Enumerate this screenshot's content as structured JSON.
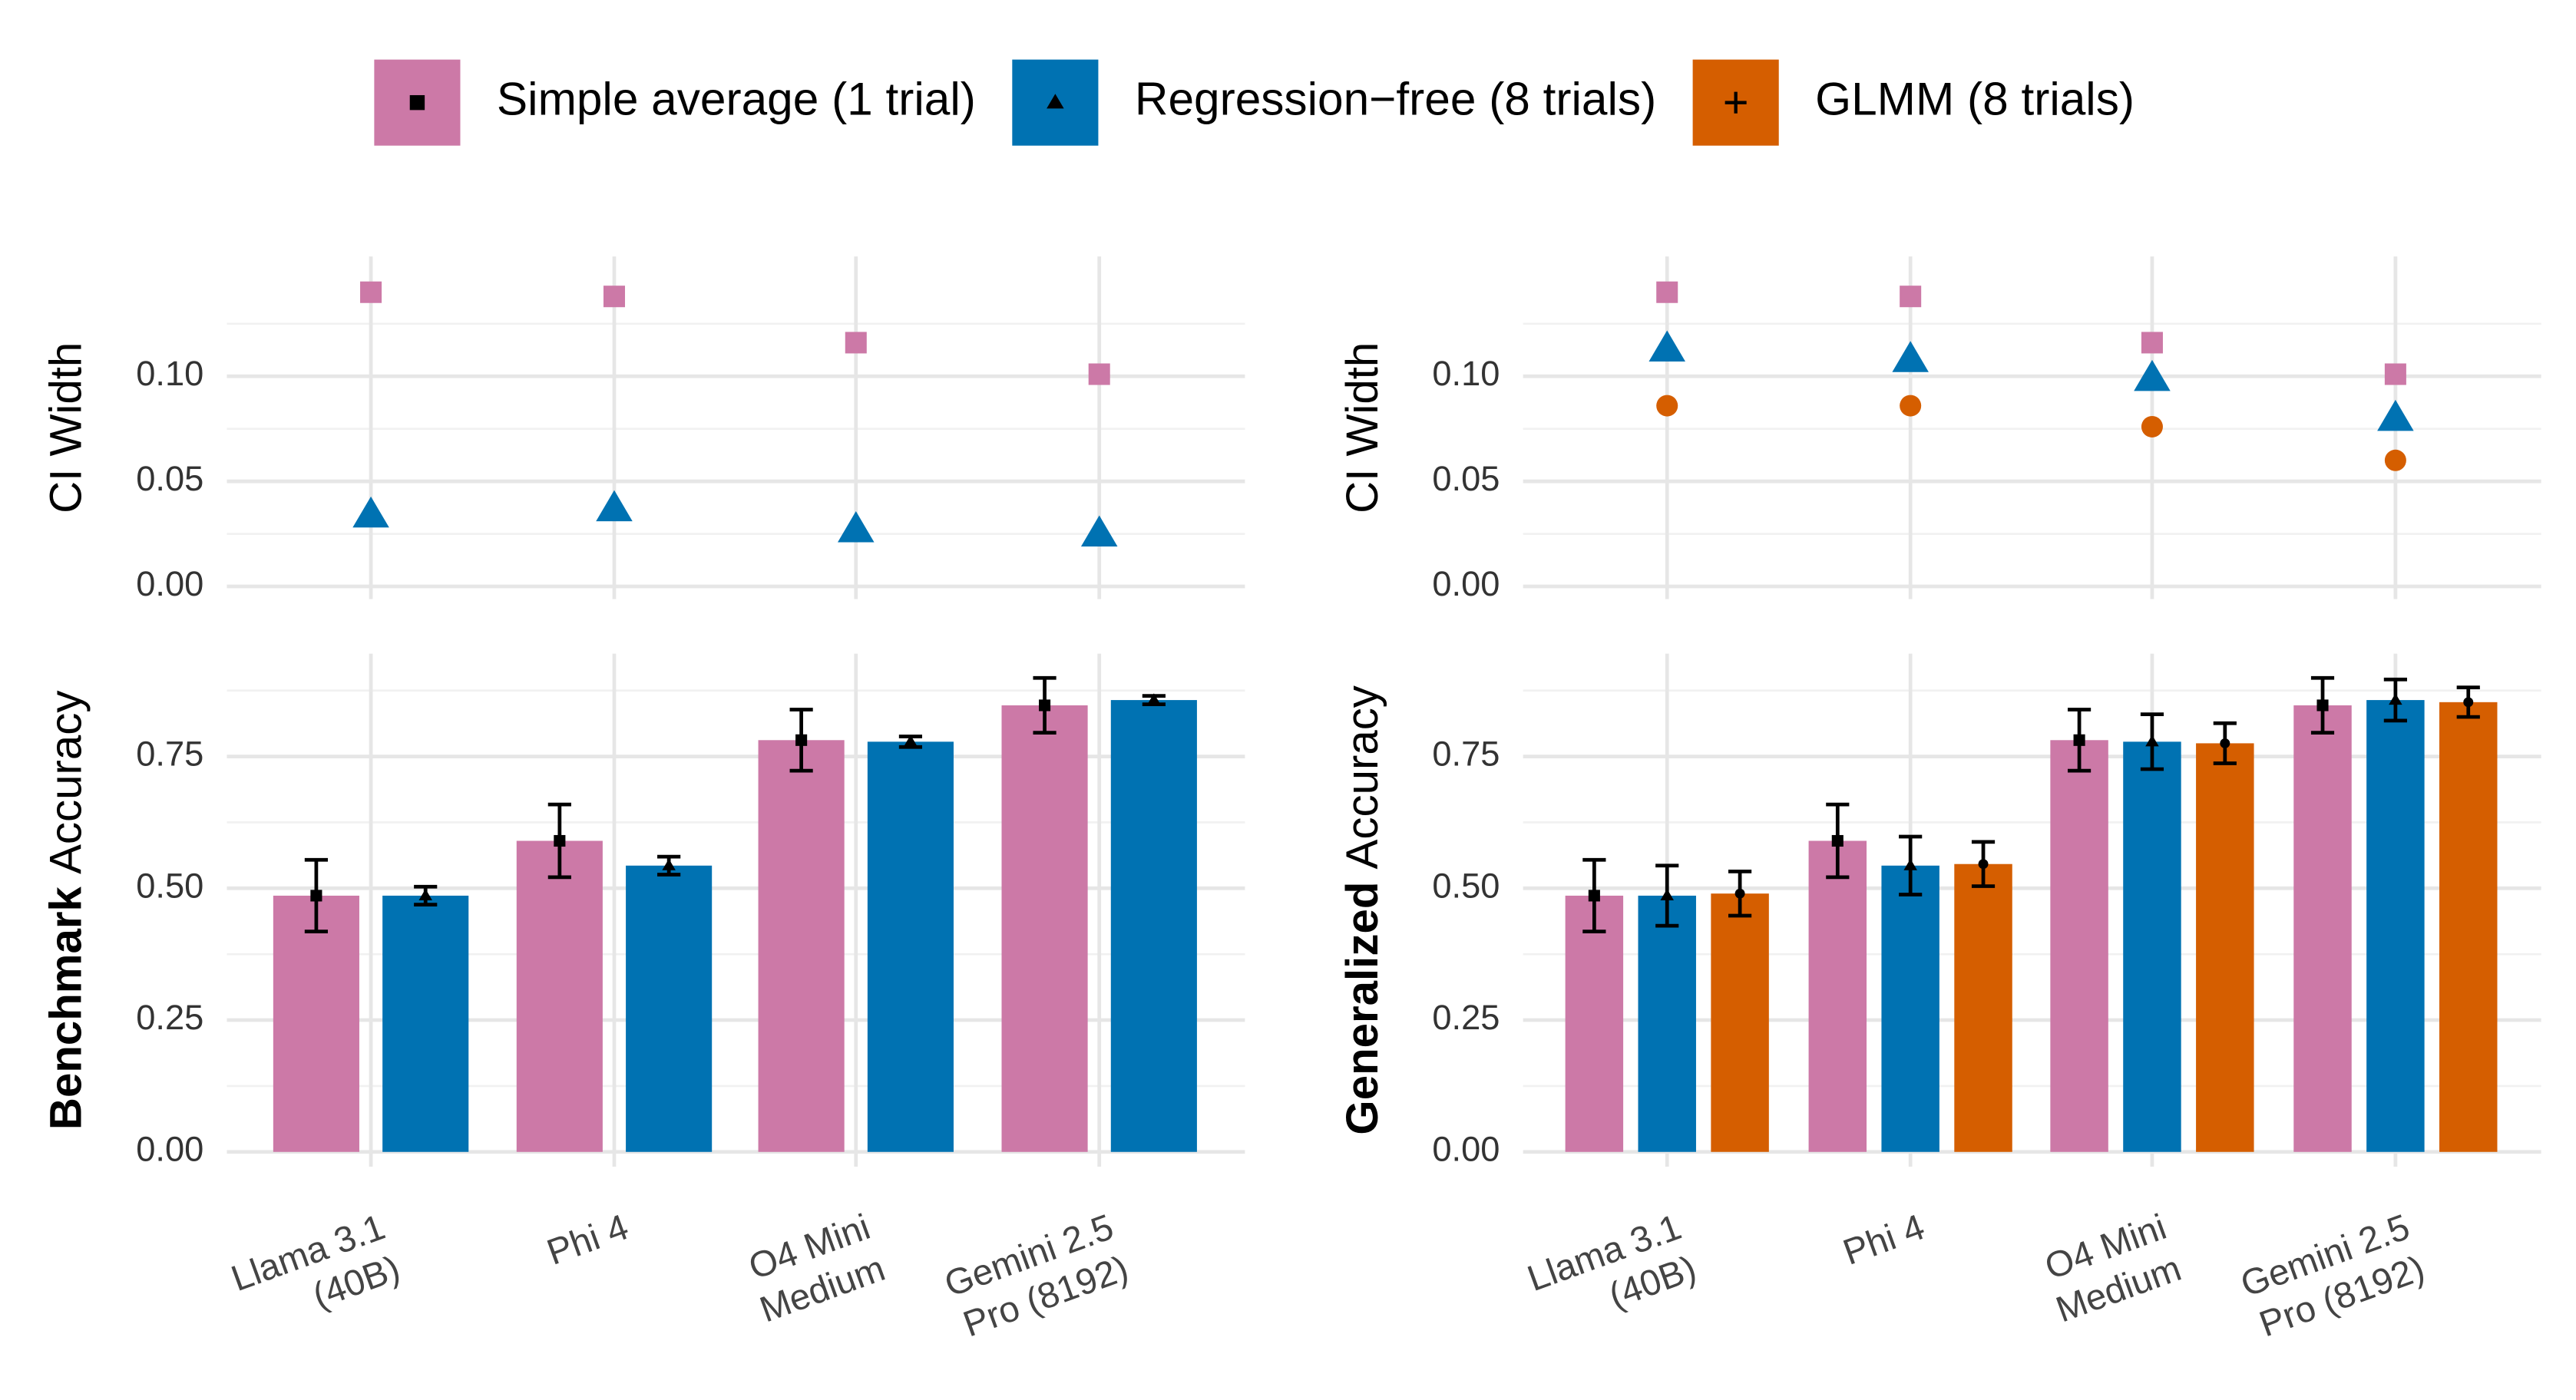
{
  "chart_data": [
    {
      "type": "scatter",
      "ylabel": "CI Width",
      "ylim": [
        -0.006,
        0.157
      ],
      "yticks": [
        {
          "value": 0,
          "label": "0.00"
        },
        {
          "value": 0.05,
          "label": "0.05"
        },
        {
          "value": 0.1,
          "label": "0.10"
        }
      ],
      "grid": true,
      "series": [
        {
          "color": "#cc79a7",
          "marker": "square",
          "values": [
            0.14,
            0.138,
            0.116,
            0.101
          ]
        },
        {
          "color": "#0072b2",
          "marker": "triangle",
          "values": [
            0.034,
            0.037,
            0.027,
            0.025
          ]
        }
      ]
    },
    {
      "type": "scatter",
      "ylabel": "CI Width",
      "ylim": [
        -0.006,
        0.157
      ],
      "yticks": [
        {
          "value": 0,
          "label": "0.00"
        },
        {
          "value": 0.05,
          "label": "0.05"
        },
        {
          "value": 0.1,
          "label": "0.10"
        }
      ],
      "grid": true,
      "series": [
        {
          "color": "#cc79a7",
          "marker": "square",
          "values": [
            0.14,
            0.138,
            0.116,
            0.101
          ]
        },
        {
          "color": "#0072b2",
          "marker": "triangle",
          "values": [
            0.113,
            0.108,
            0.099,
            0.08
          ]
        },
        {
          "color": "#d55e00",
          "marker": "circle",
          "values": [
            0.086,
            0.086,
            0.076,
            0.06
          ]
        }
      ]
    },
    {
      "type": "bar",
      "ylabel_parts": [
        "Benchmark",
        "Accuracy"
      ],
      "categories": [
        [
          "Llama 3.1",
          "(40B)"
        ],
        [
          "Phi 4"
        ],
        [
          "O4 Mini",
          "Medium"
        ],
        [
          "Gemini 2.5",
          "Pro (8192)"
        ]
      ],
      "ylim": [
        -0.028,
        0.945
      ],
      "yticks": [
        {
          "value": 0,
          "label": "0.00"
        },
        {
          "value": 0.25,
          "label": "0.25"
        },
        {
          "value": 0.5,
          "label": "0.50"
        },
        {
          "value": 0.75,
          "label": "0.75"
        }
      ],
      "grid": true,
      "series": [
        {
          "color": "#cc79a7",
          "marker": "square",
          "values": [
            0.486,
            0.59,
            0.781,
            0.847
          ],
          "errors": [
            0.068,
            0.069,
            0.058,
            0.052
          ]
        },
        {
          "color": "#0072b2",
          "marker": "triangle",
          "values": [
            0.486,
            0.543,
            0.778,
            0.857
          ],
          "errors": [
            0.017,
            0.017,
            0.01,
            0.008
          ]
        }
      ]
    },
    {
      "type": "bar",
      "ylabel_parts": [
        "Generalized",
        "Accuracy"
      ],
      "categories": [
        [
          "Llama 3.1",
          "(40B)"
        ],
        [
          "Phi 4"
        ],
        [
          "O4 Mini",
          "Medium"
        ],
        [
          "Gemini 2.5",
          "Pro (8192)"
        ]
      ],
      "ylim": [
        -0.028,
        0.945
      ],
      "yticks": [
        {
          "value": 0,
          "label": "0.00"
        },
        {
          "value": 0.25,
          "label": "0.25"
        },
        {
          "value": 0.5,
          "label": "0.50"
        },
        {
          "value": 0.75,
          "label": "0.75"
        }
      ],
      "grid": true,
      "series": [
        {
          "name": "Simple average (1 trial)",
          "color": "#cc79a7",
          "marker": "square",
          "values": [
            0.486,
            0.59,
            0.781,
            0.847
          ],
          "errors": [
            0.068,
            0.069,
            0.058,
            0.052
          ]
        },
        {
          "name": "Regression−free (8 trials)",
          "color": "#0072b2",
          "marker": "triangle",
          "values": [
            0.486,
            0.543,
            0.778,
            0.857
          ],
          "errors": [
            0.057,
            0.055,
            0.052,
            0.039
          ]
        },
        {
          "name": "GLMM (8 trials)",
          "color": "#d55e00",
          "marker": "plus",
          "values": [
            0.49,
            0.546,
            0.775,
            0.853
          ],
          "errors": [
            0.042,
            0.042,
            0.038,
            0.028
          ]
        }
      ]
    }
  ]
}
